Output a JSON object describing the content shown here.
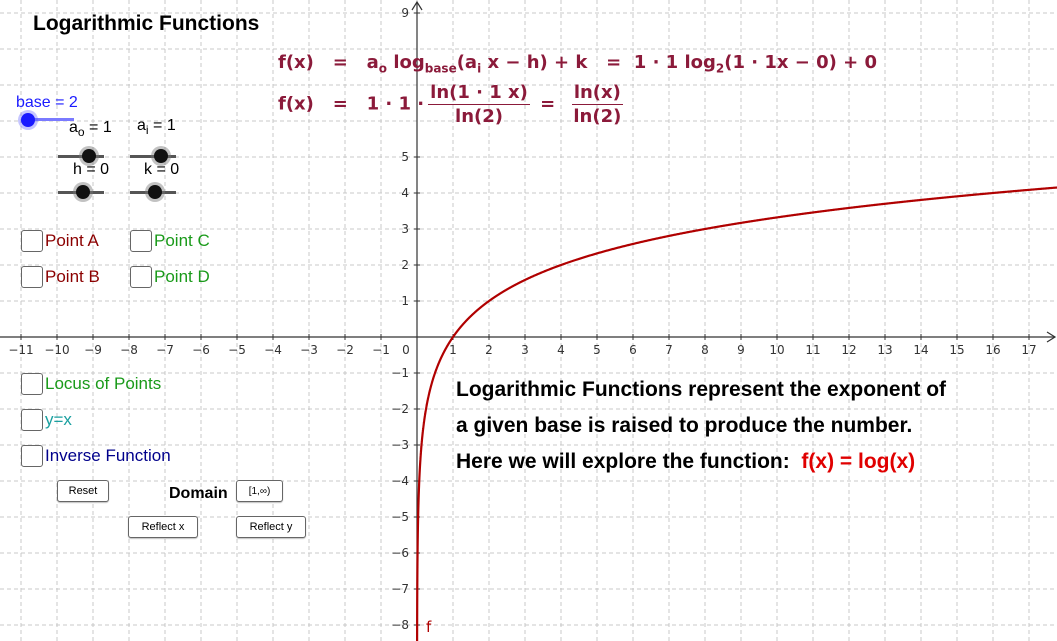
{
  "title": "Logarithmic Functions",
  "formula": {
    "line1_lhs": "f(x)",
    "eq": "=",
    "a_o": "a",
    "a_o_sub": "o",
    "log_word": "log",
    "log_sub": "base",
    "line1_mid": "(a",
    "a_i_sub": "i",
    "line1_rest": " x − h) + k",
    "line1_rhs_a": "1 ·  1 log",
    "line1_rhs_sub": "2",
    "line1_rhs_b": "(1 · 1x  −  0)  +  0",
    "line2_lhs": "f(x)",
    "line2_coef": "1 · 1 ·",
    "frac1_num": "ln(1 · 1 x)",
    "frac1_den": "ln(2)",
    "frac2_num": "ln(x)",
    "frac2_den": "ln(2)"
  },
  "sliders": {
    "base": {
      "label": "base = 2",
      "value": 2
    },
    "a_o": {
      "label_main": "a",
      "label_sub": "o",
      "label_rest": " = 1",
      "value": 1
    },
    "a_i": {
      "label_main": "a",
      "label_sub": "i",
      "label_rest": " = 1",
      "value": 1
    },
    "h": {
      "label": "h = 0",
      "value": 0
    },
    "k": {
      "label": "k = 0",
      "value": 0
    }
  },
  "checkboxes": {
    "point_a": {
      "label": "Point A",
      "color": "#8b0000",
      "checked": false
    },
    "point_b": {
      "label": "Point B",
      "color": "#8b0000",
      "checked": false
    },
    "point_c": {
      "label": "Point C",
      "color": "#1a9a1a",
      "checked": false
    },
    "point_d": {
      "label": "Point D",
      "color": "#1a9a1a",
      "checked": false
    },
    "locus": {
      "label": "Locus of Points",
      "color": "#1a9a1a",
      "checked": false
    },
    "yx": {
      "label": "y=x",
      "color": "#1aa0a0",
      "checked": false
    },
    "inverse": {
      "label": "Inverse Function",
      "color": "#00008b",
      "checked": false
    }
  },
  "buttons": {
    "reset": "Reset",
    "domain_label": "Domain",
    "domain_btn": "[1,∞)",
    "reflect_x": "Reflect x",
    "reflect_y": "Reflect y"
  },
  "description": {
    "line1": "Logarithmic Functions represent the exponent of",
    "line2": "a given base is raised to produce the number.",
    "line3": "Here we will explore the function:",
    "func": "f(x) = log(x)"
  },
  "graph": {
    "function_label": "f",
    "curve_color": "#b00000",
    "x_range": [
      -11,
      17
    ],
    "y_range": [
      -8,
      9
    ],
    "x_tick_labels": [
      "−11",
      "−10",
      "−9",
      "−8",
      "−7",
      "−6",
      "−5",
      "−4",
      "−3",
      "−2",
      "−1",
      "0",
      "1",
      "2",
      "3",
      "4",
      "5",
      "6",
      "7",
      "8",
      "9",
      "10",
      "11",
      "12",
      "13",
      "14",
      "15",
      "16",
      "17"
    ],
    "y_tick_labels": [
      "−8",
      "−7",
      "−6",
      "−5",
      "−4",
      "−3",
      "−2",
      "−1",
      "1",
      "2",
      "3",
      "4",
      "5",
      "9"
    ]
  }
}
